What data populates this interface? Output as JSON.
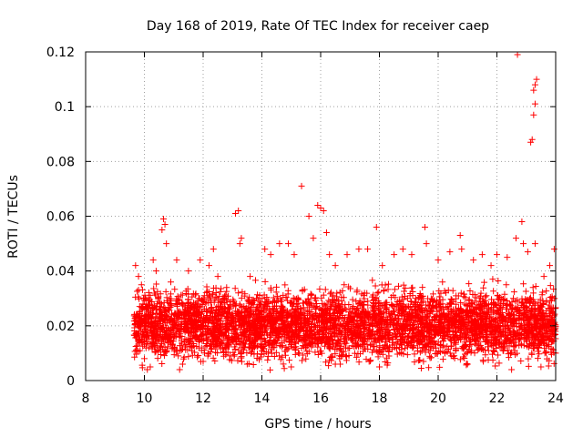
{
  "chart_data": {
    "type": "scatter",
    "title": "Day 168 of 2019, Rate Of TEC Index for receiver caep",
    "xlabel": "GPS time / hours",
    "ylabel": "ROTI / TECUs",
    "xlim": [
      8,
      24
    ],
    "ylim": [
      0,
      0.12
    ],
    "grid": true,
    "marker": "+",
    "marker_color": "#ff0000",
    "x_ticks": [
      8,
      10,
      12,
      14,
      16,
      18,
      20,
      22,
      24
    ],
    "x_tick_labels": [
      "8",
      "10",
      "12",
      "14",
      "16",
      "18",
      "20",
      "22",
      "24"
    ],
    "y_ticks": [
      0,
      0.02,
      0.04,
      0.06,
      0.08,
      0.1,
      0.12
    ],
    "y_tick_labels": [
      "0",
      "0.02",
      "0.04",
      "0.06",
      "0.08",
      "0.1",
      "0.12"
    ],
    "data_range_x": [
      9.65,
      24.0
    ],
    "bulk_range_y": [
      0.005,
      0.04
    ],
    "series": [
      {
        "name": "ROTI",
        "points": [
          [
            9.7,
            0.042
          ],
          [
            9.8,
            0.038
          ],
          [
            9.9,
            0.035
          ],
          [
            10.0,
            0.008
          ],
          [
            10.1,
            0.004
          ],
          [
            10.2,
            0.005
          ],
          [
            10.3,
            0.044
          ],
          [
            10.4,
            0.04
          ],
          [
            10.6,
            0.055
          ],
          [
            10.65,
            0.059
          ],
          [
            10.7,
            0.057
          ],
          [
            10.75,
            0.05
          ],
          [
            10.9,
            0.036
          ],
          [
            11.1,
            0.044
          ],
          [
            11.3,
            0.006
          ],
          [
            11.5,
            0.04
          ],
          [
            11.9,
            0.044
          ],
          [
            12.2,
            0.042
          ],
          [
            12.35,
            0.048
          ],
          [
            12.5,
            0.038
          ],
          [
            12.8,
            0.034
          ],
          [
            13.1,
            0.061
          ],
          [
            13.2,
            0.062
          ],
          [
            13.3,
            0.052
          ],
          [
            13.25,
            0.05
          ],
          [
            13.6,
            0.038
          ],
          [
            14.1,
            0.048
          ],
          [
            14.3,
            0.046
          ],
          [
            14.6,
            0.05
          ],
          [
            14.9,
            0.05
          ],
          [
            15.1,
            0.046
          ],
          [
            15.35,
            0.071
          ],
          [
            15.6,
            0.06
          ],
          [
            15.75,
            0.052
          ],
          [
            15.9,
            0.064
          ],
          [
            16.0,
            0.063
          ],
          [
            16.1,
            0.062
          ],
          [
            16.2,
            0.054
          ],
          [
            16.3,
            0.046
          ],
          [
            16.5,
            0.042
          ],
          [
            16.9,
            0.046
          ],
          [
            17.3,
            0.048
          ],
          [
            17.6,
            0.048
          ],
          [
            17.9,
            0.056
          ],
          [
            18.1,
            0.042
          ],
          [
            18.5,
            0.046
          ],
          [
            18.8,
            0.048
          ],
          [
            19.1,
            0.046
          ],
          [
            19.55,
            0.056
          ],
          [
            19.6,
            0.05
          ],
          [
            20.0,
            0.044
          ],
          [
            20.4,
            0.047
          ],
          [
            20.75,
            0.053
          ],
          [
            20.8,
            0.048
          ],
          [
            21.2,
            0.044
          ],
          [
            21.5,
            0.046
          ],
          [
            21.8,
            0.042
          ],
          [
            22.0,
            0.046
          ],
          [
            22.35,
            0.045
          ],
          [
            22.65,
            0.052
          ],
          [
            22.7,
            0.119
          ],
          [
            22.85,
            0.058
          ],
          [
            22.9,
            0.05
          ],
          [
            23.05,
            0.047
          ],
          [
            23.15,
            0.087
          ],
          [
            23.2,
            0.088
          ],
          [
            23.25,
            0.097
          ],
          [
            23.3,
            0.101
          ],
          [
            23.25,
            0.106
          ],
          [
            23.3,
            0.108
          ],
          [
            23.35,
            0.11
          ],
          [
            23.3,
            0.05
          ],
          [
            23.6,
            0.038
          ],
          [
            23.8,
            0.042
          ],
          [
            23.95,
            0.048
          ],
          [
            24.0,
            0.01
          ],
          [
            23.5,
            0.005
          ],
          [
            22.5,
            0.004
          ],
          [
            21.0,
            0.006
          ],
          [
            19.5,
            0.007
          ],
          [
            18.0,
            0.005
          ],
          [
            16.5,
            0.006
          ],
          [
            15.0,
            0.005
          ],
          [
            13.5,
            0.006
          ],
          [
            12.0,
            0.007
          ],
          [
            11.2,
            0.004
          ]
        ]
      }
    ]
  }
}
